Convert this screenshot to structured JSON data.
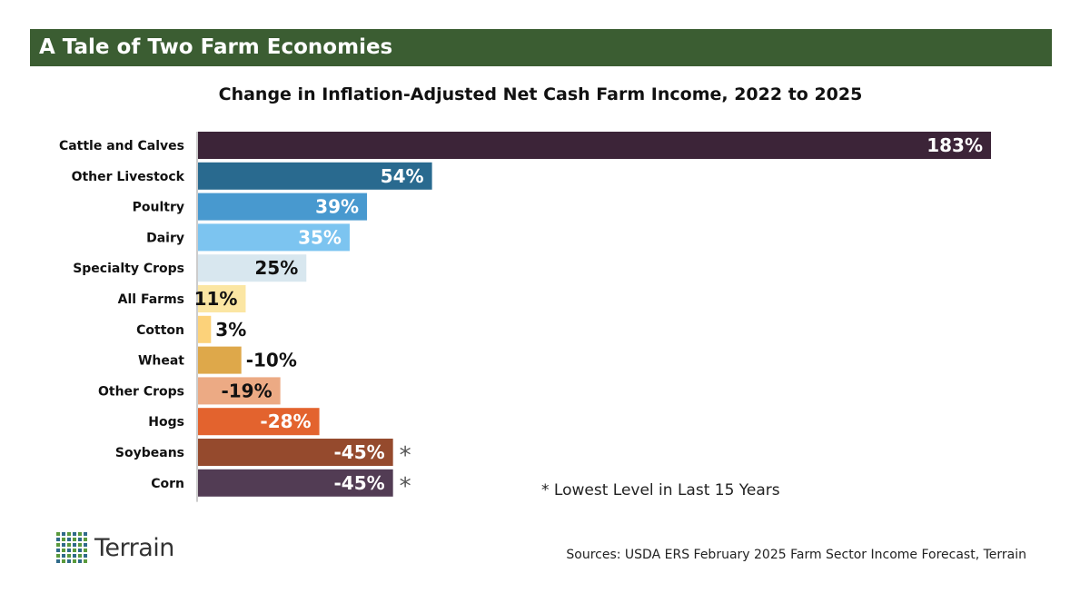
{
  "banner": {
    "title": "A Tale of Two Farm Economies"
  },
  "chart_data": {
    "type": "bar",
    "orientation": "horizontal",
    "title": "Change in Inflation-Adjusted Net Cash Farm Income, 2022 to 2025",
    "categories": [
      "Cattle and Calves",
      "Other Livestock",
      "Poultry",
      "Dairy",
      "Specialty Crops",
      "All Farms",
      "Cotton",
      "Wheat",
      "Other Crops",
      "Hogs",
      "Soybeans",
      "Corn"
    ],
    "values": [
      183,
      54,
      39,
      35,
      25,
      11,
      3,
      -10,
      -19,
      -28,
      -45,
      -45
    ],
    "value_labels": [
      "183%",
      "54%",
      "39%",
      "35%",
      "25%",
      "11%",
      "3%",
      "-10%",
      "-19%",
      "-28%",
      "-45%",
      "-45%"
    ],
    "bar_colors": [
      "#3c2438",
      "#296a8f",
      "#4899cf",
      "#7cc4f0",
      "#d8e7ef",
      "#fbe6a3",
      "#fcd27a",
      "#dea84a",
      "#ecaa84",
      "#e3632e",
      "#954a2d",
      "#523c54"
    ],
    "label_colors": [
      "#ffffff",
      "#ffffff",
      "#ffffff",
      "#ffffff",
      "#111111",
      "#111111",
      "#111111",
      "#111111",
      "#111111",
      "#ffffff",
      "#ffffff",
      "#ffffff"
    ],
    "bar_lengths_note": "bars drawn by absolute magnitude from a common baseline",
    "markers": [
      "",
      "",
      "",
      "",
      "",
      "",
      "",
      "",
      "",
      "",
      "*",
      "*"
    ],
    "footnote": "* Lowest Level in Last 15 Years",
    "legend": "none",
    "grid": false
  },
  "footer": {
    "logo_text": "Terrain",
    "sources": "Sources: USDA ERS February 2025 Farm Sector Income Forecast, Terrain"
  },
  "colors": {
    "banner_bg": "#3b5d32",
    "logo_green": "#5a9a3c",
    "logo_blue": "#2f6a8a"
  }
}
